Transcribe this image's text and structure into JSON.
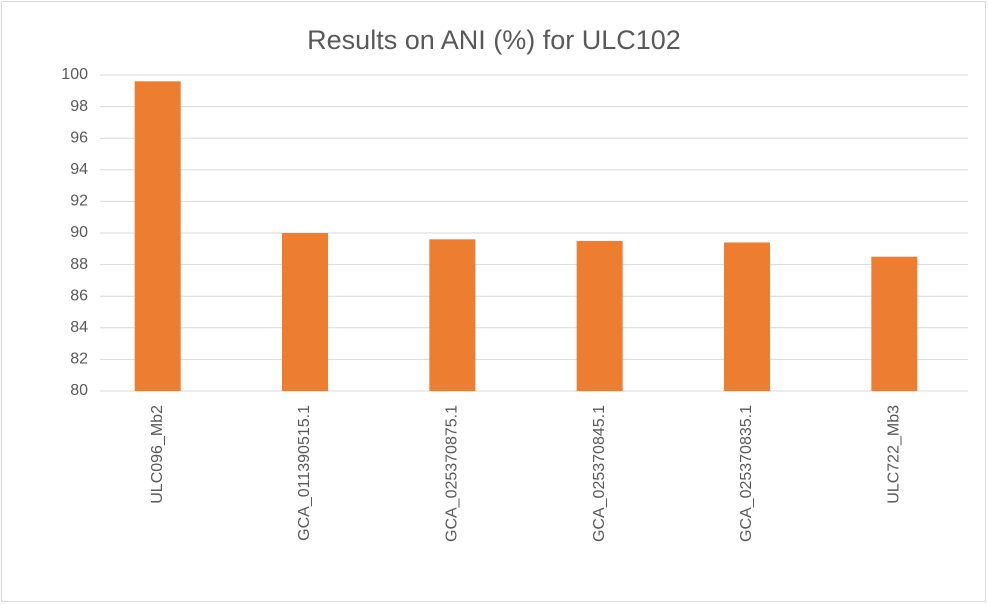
{
  "chart_data": {
    "type": "bar",
    "title": "Results on ANI (%) for ULC102",
    "categories": [
      "ULC096_Mb2",
      "GCA_011390515.1",
      "GCA_025370875.1",
      "GCA_025370845.1",
      "GCA_025370835.1",
      "ULC722_Mb3"
    ],
    "values": [
      99.6,
      90.0,
      89.6,
      89.5,
      89.4,
      88.5
    ],
    "color": "#ed7d31",
    "ylim": [
      80,
      100
    ],
    "yticks": [
      80,
      82,
      84,
      86,
      88,
      90,
      92,
      94,
      96,
      98,
      100
    ],
    "grid": true
  }
}
